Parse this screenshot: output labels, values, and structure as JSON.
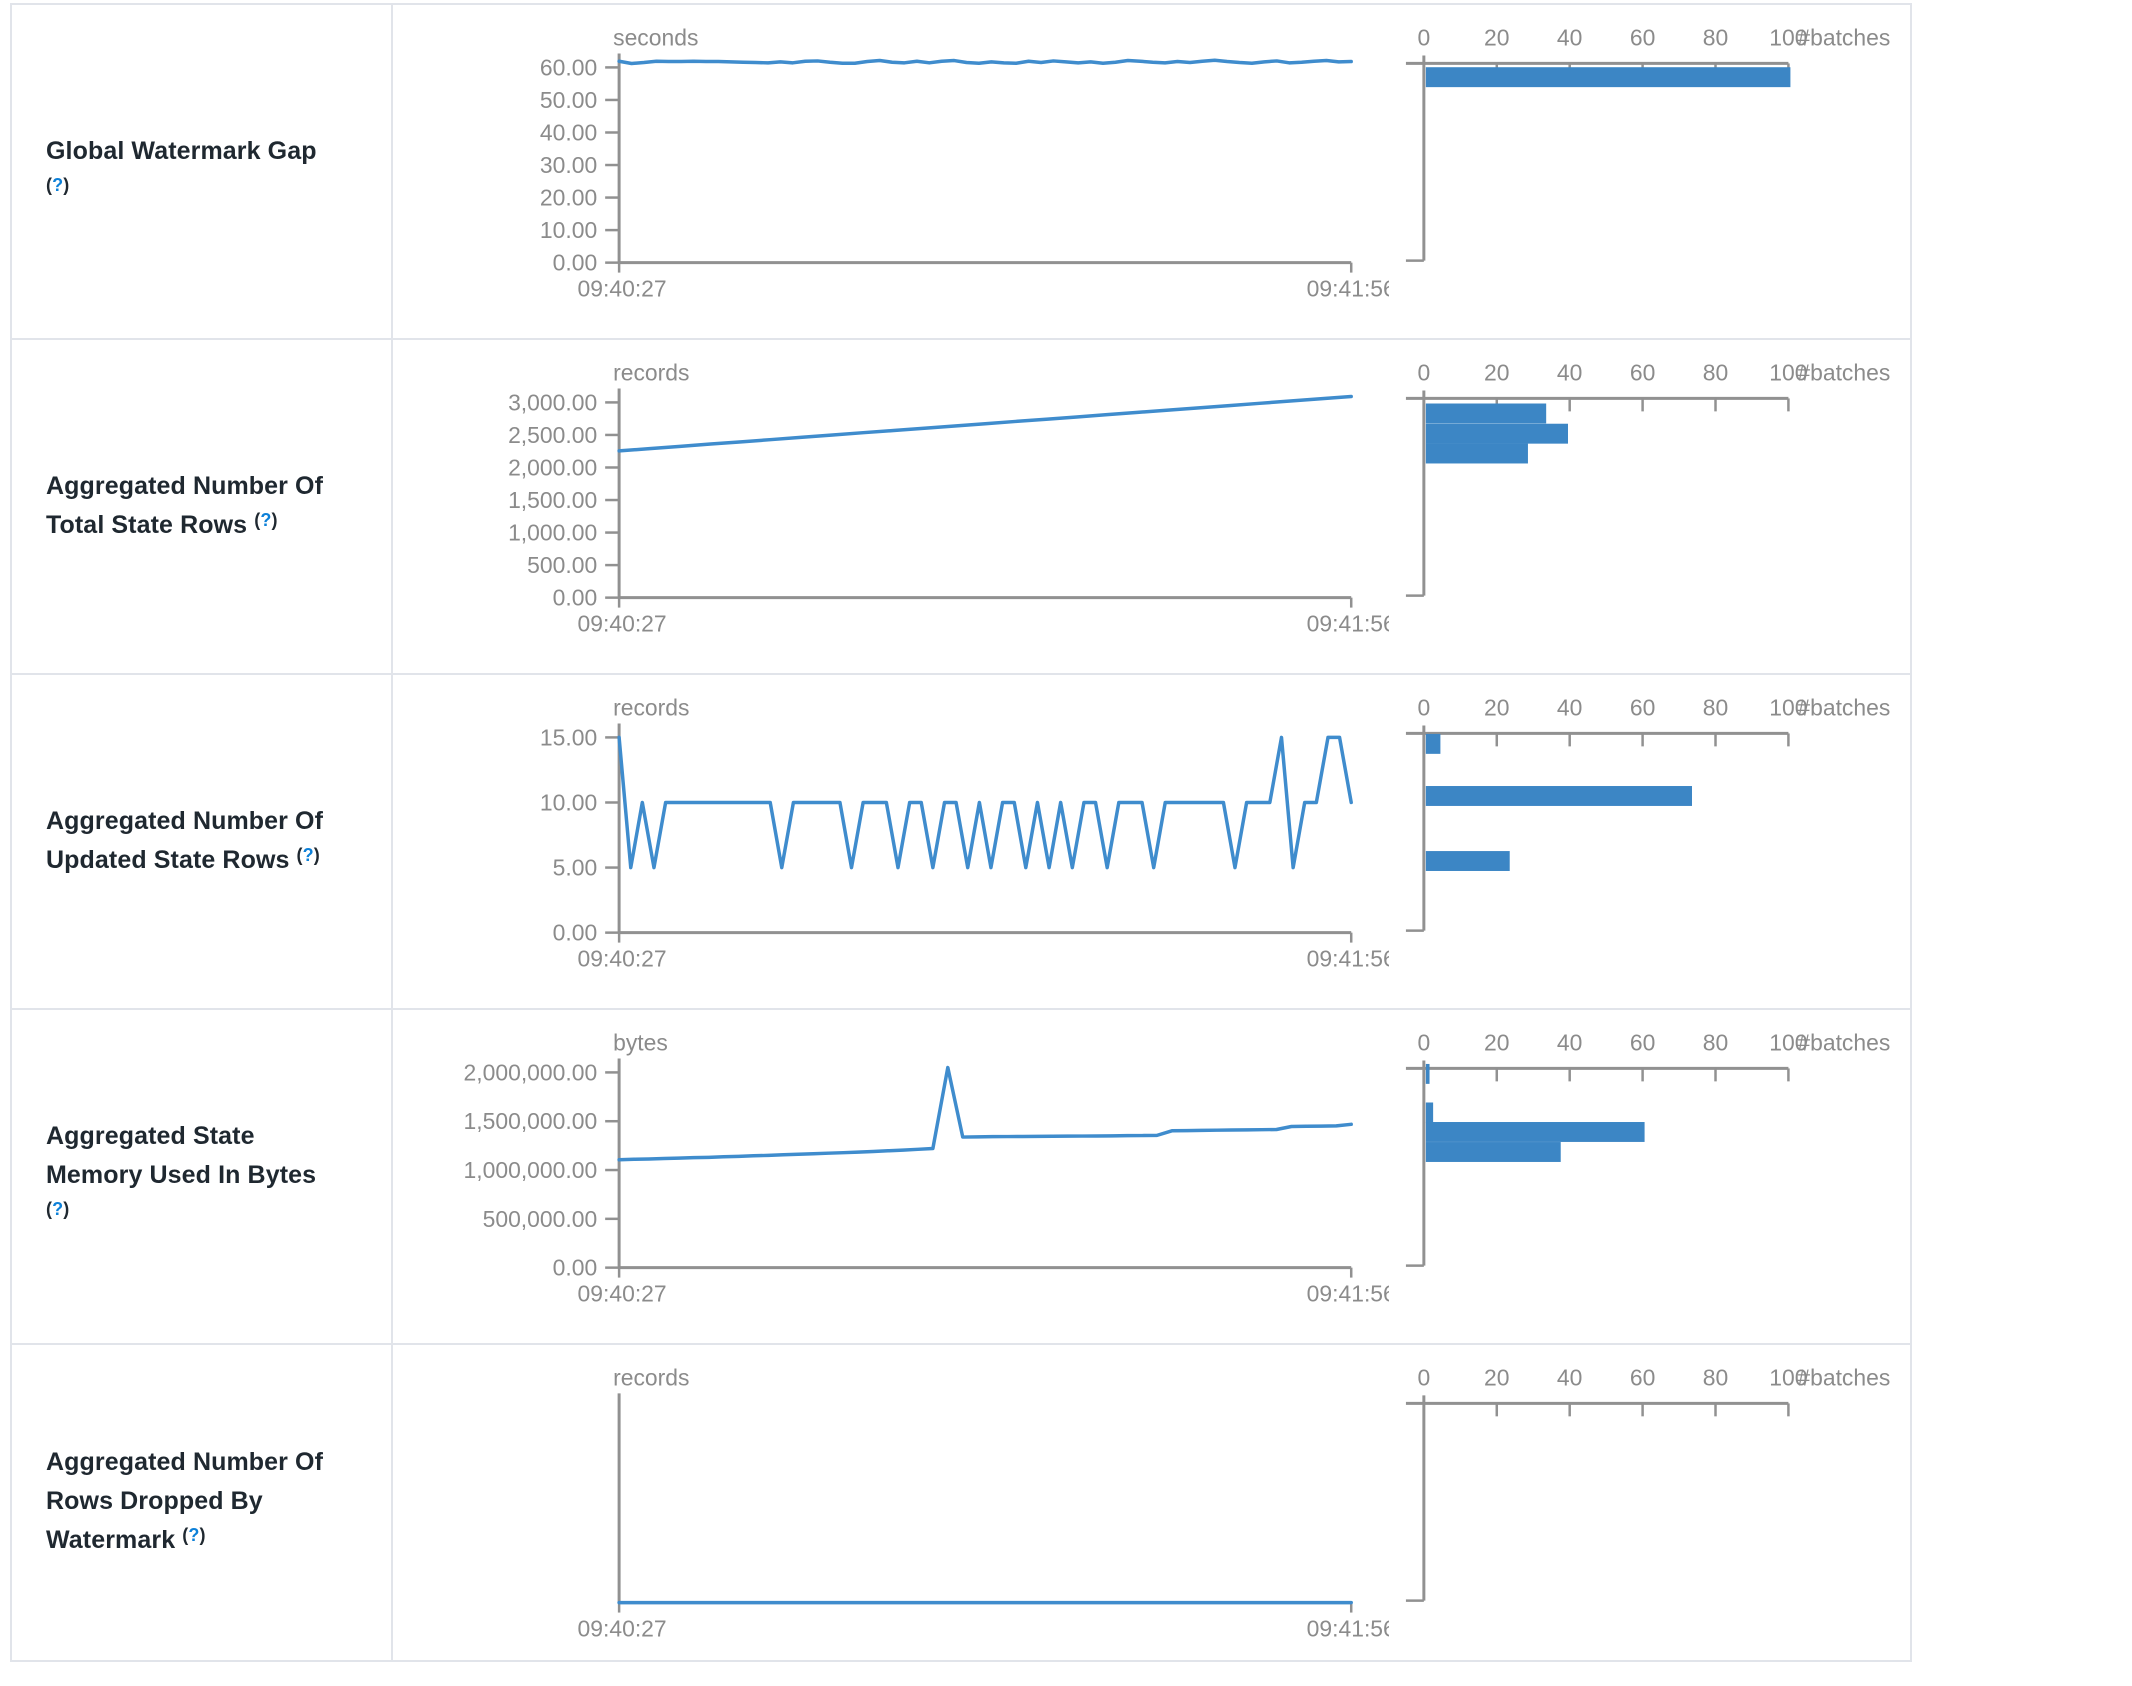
{
  "colors": {
    "line_blue": "#3f8ccd",
    "bar_blue": "#3c86c5",
    "axis_gray": "#919191",
    "text_gray": "#8b8b8b",
    "label_dark": "#1f2830",
    "link_blue": "#0d80d8",
    "border": "#e1e4ea"
  },
  "time_axis": {
    "start": "09:40:27",
    "end": "09:41:56"
  },
  "histogram_axis": {
    "tick_labels": [
      "0",
      "20",
      "40",
      "60",
      "80",
      "100"
    ],
    "tick_values": [
      0,
      20,
      40,
      60,
      80,
      100
    ],
    "max": 100,
    "unit_label": "#batches"
  },
  "chart_data": [
    {
      "metric": "Global Watermark Gap",
      "label_lines": [
        "Global Watermark Gap",
        "(?)"
      ],
      "help_symbol": "?",
      "timeline": {
        "type": "line",
        "unit": "seconds",
        "x_start": "09:40:27",
        "x_end": "09:41:56",
        "ytick_labels": [
          "60.00",
          "50.00",
          "40.00",
          "30.00",
          "20.00",
          "10.00",
          "0.00"
        ],
        "ymax_tick": 60,
        "values": [
          61.9,
          61.2,
          61.5,
          61.9,
          61.8,
          61.8,
          61.9,
          61.8,
          61.8,
          61.7,
          61.6,
          61.5,
          61.4,
          61.7,
          61.4,
          61.9,
          62.0,
          61.6,
          61.3,
          61.3,
          61.8,
          62.1,
          61.6,
          61.4,
          61.9,
          61.4,
          61.9,
          62.1,
          61.5,
          61.3,
          61.7,
          61.4,
          61.3,
          61.9,
          61.5,
          62.0,
          61.7,
          61.4,
          61.7,
          61.3,
          61.6,
          62.1,
          61.9,
          61.6,
          61.4,
          61.8,
          61.5,
          61.9,
          62.2,
          61.8,
          61.5,
          61.3,
          61.7,
          62.0,
          61.4,
          61.6,
          61.9,
          62.1,
          61.7,
          61.8
        ]
      },
      "histogram": {
        "type": "bar",
        "unit_label": "#batches",
        "xmax": 100,
        "bars": [
          {
            "bin_center": 57,
            "count": 100
          }
        ]
      }
    },
    {
      "metric": "Aggregated Number Of Total State Rows",
      "label_lines": [
        "Aggregated Number Of",
        "Total State Rows (?)"
      ],
      "help_symbol": "?",
      "timeline": {
        "type": "line",
        "unit": "records",
        "x_start": "09:40:27",
        "x_end": "09:41:56",
        "ytick_labels": [
          "3,000.00",
          "2,500.00",
          "2,000.00",
          "1,500.00",
          "1,000.00",
          "500.00",
          "0.00"
        ],
        "ymax_tick": 3000,
        "values": [
          2255,
          2290,
          2325,
          2360,
          2394,
          2429,
          2464,
          2499,
          2534,
          2568,
          2603,
          2638,
          2673,
          2708,
          2742,
          2777,
          2812,
          2847,
          2882,
          2916,
          2951,
          2986,
          3021,
          3056,
          3090
        ]
      },
      "histogram": {
        "type": "bar",
        "unit_label": "#batches",
        "xmax": 100,
        "bars": [
          {
            "bin_center": 2830,
            "count": 33
          },
          {
            "bin_center": 2520,
            "count": 39
          },
          {
            "bin_center": 2215,
            "count": 28
          }
        ]
      }
    },
    {
      "metric": "Aggregated Number Of Updated State Rows",
      "label_lines": [
        "Aggregated Number Of",
        "Updated State Rows (?)"
      ],
      "help_symbol": "?",
      "timeline": {
        "type": "line",
        "unit": "records",
        "x_start": "09:40:27",
        "x_end": "09:41:56",
        "ytick_labels": [
          "15.00",
          "10.00",
          "5.00",
          "0.00"
        ],
        "ymax_tick": 15,
        "values": [
          15,
          5,
          10,
          5,
          10,
          10,
          10,
          10,
          10,
          10,
          10,
          10,
          10,
          10,
          5,
          10,
          10,
          10,
          10,
          10,
          5,
          10,
          10,
          10,
          5,
          10,
          10,
          5,
          10,
          10,
          5,
          10,
          5,
          10,
          10,
          5,
          10,
          5,
          10,
          5,
          10,
          10,
          5,
          10,
          10,
          10,
          5,
          10,
          10,
          10,
          10,
          10,
          10,
          5,
          10,
          10,
          10,
          15,
          5,
          10,
          10,
          15,
          15,
          10
        ]
      },
      "histogram": {
        "type": "bar",
        "unit_label": "#batches",
        "xmax": 100,
        "bars": [
          {
            "bin_center": 14.5,
            "count": 4
          },
          {
            "bin_center": 10.5,
            "count": 73
          },
          {
            "bin_center": 5.5,
            "count": 23
          }
        ]
      }
    },
    {
      "metric": "Aggregated State Memory Used In Bytes",
      "label_lines": [
        "Aggregated State",
        "Memory Used In Bytes",
        "(?)"
      ],
      "help_symbol": "?",
      "timeline": {
        "type": "line",
        "unit": "bytes",
        "x_start": "09:40:27",
        "x_end": "09:41:56",
        "ytick_labels": [
          "2,000,000.00",
          "1,500,000.00",
          "1,000,000.00",
          "500,000.00",
          "0.00"
        ],
        "ymax_tick": 2000000,
        "values": [
          1105000,
          1110000,
          1113000,
          1118000,
          1122000,
          1127000,
          1130000,
          1136000,
          1140000,
          1146000,
          1150000,
          1156000,
          1161000,
          1166000,
          1172000,
          1178000,
          1184000,
          1190000,
          1197000,
          1204000,
          1212000,
          1220000,
          2050000,
          1338000,
          1340000,
          1342000,
          1343000,
          1344000,
          1345000,
          1346000,
          1347000,
          1348000,
          1349000,
          1350000,
          1352000,
          1353000,
          1355000,
          1402000,
          1404000,
          1406000,
          1408000,
          1410000,
          1411000,
          1413000,
          1415000,
          1446000,
          1448000,
          1450000,
          1452000,
          1468000
        ]
      },
      "histogram": {
        "type": "bar",
        "unit_label": "#batches",
        "xmax": 100,
        "bars": [
          {
            "bin_center": 1985000,
            "count": 1
          },
          {
            "bin_center": 1590000,
            "count": 2
          },
          {
            "bin_center": 1390000,
            "count": 60
          },
          {
            "bin_center": 1185000,
            "count": 37
          }
        ]
      }
    },
    {
      "metric": "Aggregated Number Of Rows Dropped By Watermark",
      "label_lines": [
        "Aggregated Number Of",
        "Rows Dropped By",
        "Watermark (?)"
      ],
      "help_symbol": "?",
      "timeline": {
        "type": "line",
        "unit": "records",
        "x_start": "09:40:27",
        "x_end": "09:41:56",
        "ytick_labels": [],
        "ymax_tick": 1,
        "values": [
          0,
          0,
          0,
          0,
          0,
          0,
          0,
          0,
          0,
          0,
          0,
          0
        ]
      },
      "histogram": {
        "type": "bar",
        "unit_label": "#batches",
        "xmax": 100,
        "bars": []
      }
    }
  ]
}
